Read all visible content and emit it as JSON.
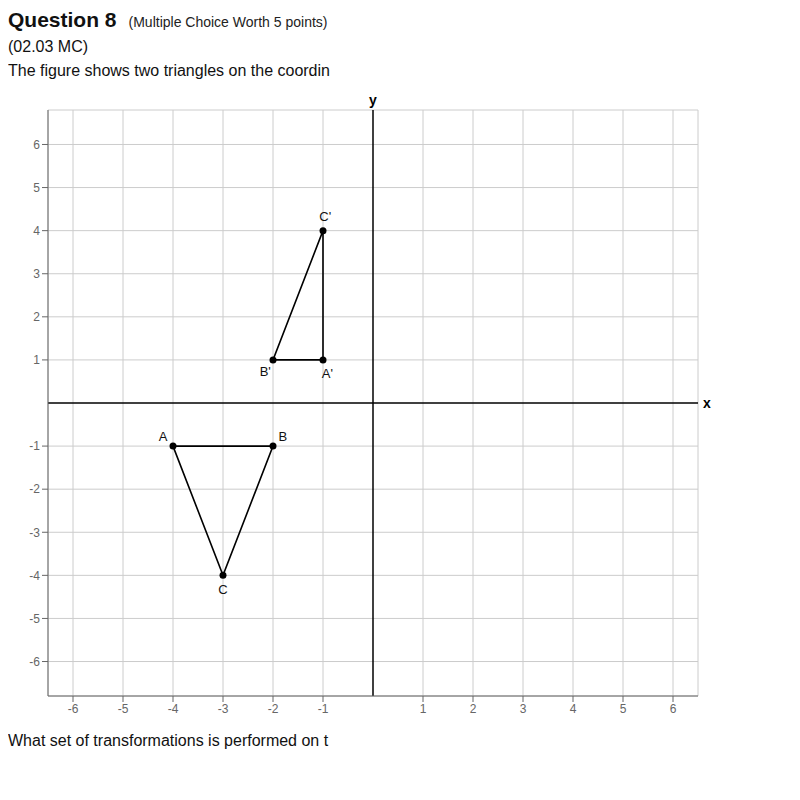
{
  "chart_data": {
    "type": "polygon",
    "title": "Question 8",
    "title_note": "(Multiple Choice Worth 5 points)",
    "subtitle": "(02.03 MC)",
    "description": "The figure shows two triangles on the coordin",
    "question": "What set of transformations is performed on t",
    "x_label": "x",
    "y_label": "y",
    "xlim": [
      -6.5,
      6.5
    ],
    "ylim": [
      -6.8,
      6.8
    ],
    "xticks": [
      -6,
      -5,
      -4,
      -3,
      -2,
      -1,
      1,
      2,
      3,
      4,
      5,
      6
    ],
    "yticks": [
      -6,
      -5,
      -4,
      -3,
      -2,
      -1,
      1,
      2,
      3,
      4,
      5,
      6
    ],
    "grid": true,
    "series": [
      {
        "color": "#000000",
        "marker": "circle",
        "x": [
          -1,
          -2,
          -1
        ],
        "values": [
          1,
          1,
          4
        ],
        "labels": [
          "A'",
          "B'",
          "C'"
        ]
      },
      {
        "color": "#000000",
        "marker": "circle",
        "x": [
          -4,
          -2,
          -3
        ],
        "values": [
          -1,
          -1,
          -4
        ],
        "labels": [
          "A",
          "B",
          "C"
        ]
      }
    ]
  }
}
